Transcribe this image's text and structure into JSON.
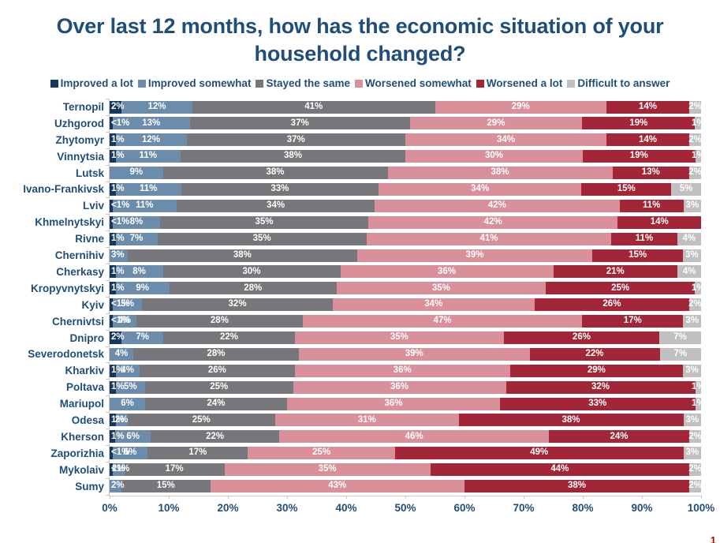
{
  "title": "Over last 12 months, how has the economic situation of your household changed?",
  "page_fragment": "1",
  "palette": {
    "title_color": "#1f4e79",
    "axis_label_color": "#1f4e79",
    "axis_line_color": "#c9c9c9",
    "bar_label_color": "#ffffff"
  },
  "chart_data": {
    "type": "bar",
    "stacked": true,
    "orientation": "horizontal",
    "title": "Over last 12 months, how has the economic situation of your household changed?",
    "xlim": [
      0,
      100
    ],
    "x_ticks": [
      "0%",
      "10%",
      "20%",
      "30%",
      "40%",
      "50%",
      "60%",
      "70%",
      "80%",
      "90%",
      "100%"
    ],
    "legend_position": "top",
    "series_names": [
      "Improved a lot",
      "Improved somewhat",
      "Stayed the same",
      "Worsened somewhat",
      "Worsened a lot",
      "Difficult to answer"
    ],
    "series_colors": [
      "#17375d",
      "#6b8cab",
      "#76767b",
      "#d9909b",
      "#a32638",
      "#c0c0c0"
    ],
    "categories": [
      "Ternopil",
      "Uzhgorod",
      "Zhytomyr",
      "Vinnytsia",
      "Lutsk",
      "Ivano-Frankivsk",
      "Lviv",
      "Khmelnytskyi",
      "Rivne",
      "Chernihiv",
      "Cherkasy",
      "Kropyvnytskyi",
      "Kyiv",
      "Chernivtsi",
      "Dnipro",
      "Severodonetsk",
      "Kharkiv",
      "Poltava",
      "Mariupol",
      "Odesa",
      "Kherson",
      "Zaporizhia",
      "Mykolaiv",
      "Sumy"
    ],
    "rows": [
      {
        "city": "Ternopil",
        "values": [
          2,
          12,
          41,
          29,
          14,
          2
        ],
        "labels": [
          "2%",
          "12%",
          "41%",
          "29%",
          "14%",
          "2%"
        ]
      },
      {
        "city": "Uzhgorod",
        "values": [
          0.5,
          13,
          37,
          29,
          19,
          1
        ],
        "labels": [
          "<1%",
          "13%",
          "37%",
          "29%",
          "19%",
          "1%"
        ]
      },
      {
        "city": "Zhytomyr",
        "values": [
          1,
          12,
          37,
          34,
          14,
          2
        ],
        "labels": [
          "1%",
          "12%",
          "37%",
          "34%",
          "14%",
          "2%"
        ]
      },
      {
        "city": "Vinnytsia",
        "values": [
          1,
          11,
          38,
          30,
          19,
          1
        ],
        "labels": [
          "1%",
          "11%",
          "38%",
          "30%",
          "19%",
          "1%"
        ]
      },
      {
        "city": "Lutsk",
        "values": [
          0,
          9,
          38,
          38,
          13,
          2
        ],
        "labels": [
          "",
          "9%",
          "38%",
          "38%",
          "13%",
          "2%"
        ]
      },
      {
        "city": "Ivano-Frankivsk",
        "values": [
          1,
          11,
          33,
          34,
          15,
          5
        ],
        "labels": [
          "1%",
          "11%",
          "33%",
          "34%",
          "15%",
          "5%"
        ]
      },
      {
        "city": "Lviv",
        "values": [
          0.5,
          11,
          34,
          42,
          11,
          3
        ],
        "labels": [
          "<1%",
          "11%",
          "34%",
          "42%",
          "11%",
          "3%"
        ]
      },
      {
        "city": "Khmelnytskyi",
        "values": [
          0.5,
          8,
          35,
          42,
          14,
          0
        ],
        "labels": [
          "<1%",
          "8%",
          "35%",
          "42%",
          "14%",
          ""
        ]
      },
      {
        "city": "Rivne",
        "values": [
          1,
          7,
          35,
          41,
          11,
          4
        ],
        "labels": [
          "1%",
          "7%",
          "35%",
          "41%",
          "11%",
          "4%"
        ]
      },
      {
        "city": "Chernihiv",
        "values": [
          0,
          3,
          38,
          39,
          15,
          3
        ],
        "labels": [
          "",
          "3%",
          "38%",
          "39%",
          "15%",
          "3%"
        ]
      },
      {
        "city": "Cherkasy",
        "values": [
          1,
          8,
          30,
          36,
          21,
          4
        ],
        "labels": [
          "1%",
          "8%",
          "30%",
          "36%",
          "21%",
          "4%"
        ]
      },
      {
        "city": "Kropyvnytskyi",
        "values": [
          1,
          9,
          28,
          35,
          25,
          1
        ],
        "labels": [
          "1%",
          "9%",
          "28%",
          "35%",
          "25%",
          "1%"
        ]
      },
      {
        "city": "Kyiv",
        "values": [
          0.5,
          5,
          32,
          34,
          26,
          2
        ],
        "labels": [
          "<1%",
          "5%",
          "32%",
          "34%",
          "26%",
          "2%"
        ]
      },
      {
        "city": "Chernivtsi",
        "values": [
          0.5,
          4,
          28,
          47,
          17,
          3
        ],
        "labels": [
          "<1%",
          "4%",
          "28%",
          "47%",
          "17%",
          "3%"
        ]
      },
      {
        "city": "Dnipro",
        "values": [
          2,
          7,
          22,
          35,
          26,
          7
        ],
        "labels": [
          "2%",
          "7%",
          "22%",
          "35%",
          "26%",
          "7%"
        ]
      },
      {
        "city": "Severodonetsk",
        "values": [
          0,
          4,
          28,
          39,
          22,
          7
        ],
        "labels": [
          "",
          "4%",
          "28%",
          "39%",
          "22%",
          "7%"
        ]
      },
      {
        "city": "Kharkiv",
        "values": [
          1,
          4,
          26,
          36,
          29,
          3
        ],
        "labels": [
          "1%",
          "4%",
          "26%",
          "36%",
          "29%",
          "3%"
        ]
      },
      {
        "city": "Poltava",
        "values": [
          1,
          5,
          25,
          36,
          32,
          1
        ],
        "labels": [
          "1%",
          "5%",
          "25%",
          "36%",
          "32%",
          "1%"
        ]
      },
      {
        "city": "Mariupol",
        "values": [
          0,
          6,
          24,
          36,
          33,
          1
        ],
        "labels": [
          "",
          "6%",
          "24%",
          "36%",
          "33%",
          "1%"
        ]
      },
      {
        "city": "Odesa",
        "values": [
          1,
          2,
          25,
          31,
          38,
          3
        ],
        "labels": [
          "1%",
          "2%",
          "25%",
          "31%",
          "38%",
          "3%"
        ]
      },
      {
        "city": "Kherson",
        "values": [
          1,
          6,
          22,
          46,
          24,
          2
        ],
        "labels": [
          "1%",
          "6%",
          "22%",
          "46%",
          "24%",
          "2%"
        ]
      },
      {
        "city": "Zaporizhia",
        "values": [
          0.5,
          6,
          17,
          25,
          49,
          3
        ],
        "labels": [
          "<1%",
          "6%",
          "17%",
          "25%",
          "49%",
          "3%"
        ]
      },
      {
        "city": "Mykolaiv",
        "values": [
          0.5,
          2,
          17,
          35,
          44,
          2
        ],
        "labels": [
          "<1%",
          "2%",
          "17%",
          "35%",
          "44%",
          "2%"
        ]
      },
      {
        "city": "Sumy",
        "values": [
          0,
          2,
          15,
          43,
          38,
          2
        ],
        "labels": [
          "",
          "2%",
          "15%",
          "43%",
          "38%",
          "2%"
        ]
      }
    ]
  }
}
